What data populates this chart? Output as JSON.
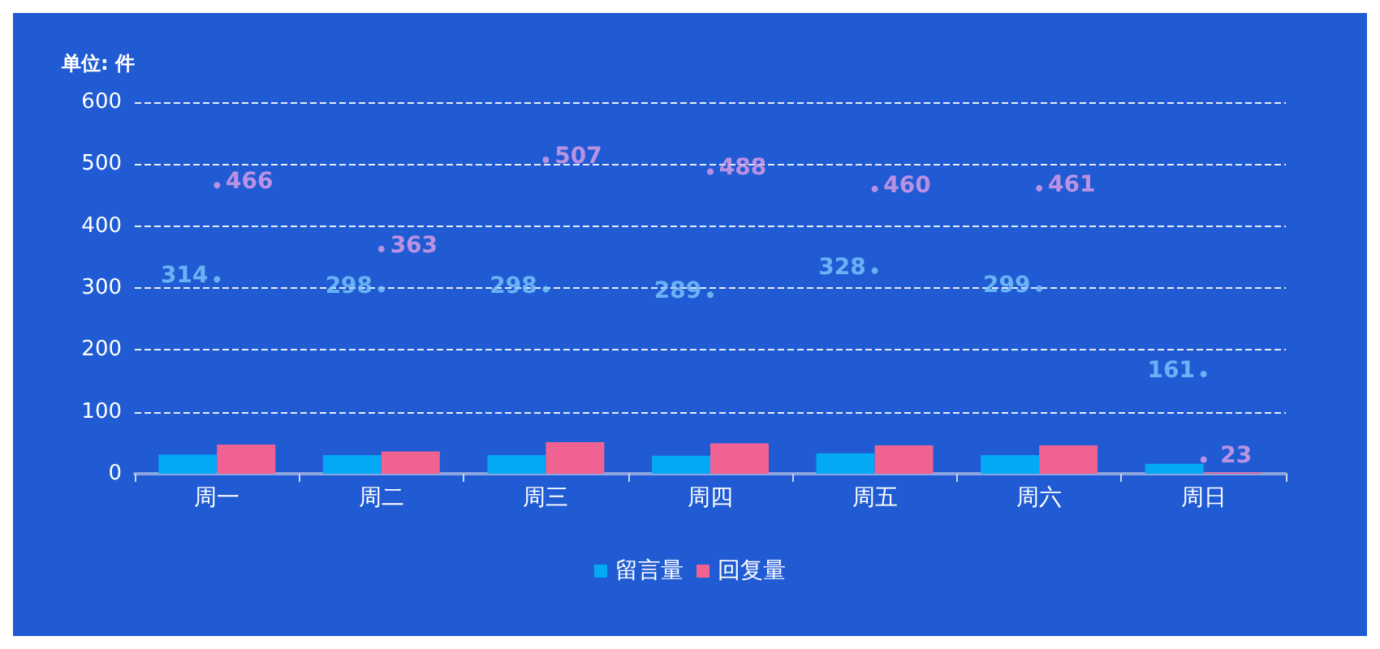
{
  "chart_data": {
    "type": "bar",
    "ylabel": "单位: 件",
    "categories": [
      "周一",
      "周二",
      "周三",
      "周四",
      "周五",
      "周六",
      "周日"
    ],
    "series": [
      {
        "name": "留言量",
        "color": "#03a9f4",
        "values": [
          31,
          30,
          30,
          29,
          33,
          30,
          16
        ]
      },
      {
        "name": "回复量",
        "color": "#f06292",
        "values": [
          47,
          36,
          51,
          49,
          46,
          46,
          2
        ]
      },
      {
        "type": "scatter",
        "color": "#7cc8ff",
        "values": [
          314,
          298,
          298,
          289,
          328,
          299,
          161
        ],
        "value_labels": [
          "314",
          "298",
          "298",
          "289",
          "328",
          "299",
          "161"
        ]
      },
      {
        "type": "scatter",
        "color": "#e0a0e8",
        "values": [
          466,
          363,
          507,
          488,
          460,
          461,
          23
        ],
        "value_labels": [
          "466",
          "363",
          "507",
          "488",
          "460",
          "461",
          "23"
        ]
      }
    ],
    "ylim": [
      0,
      600
    ],
    "yticks": [
      0,
      100,
      200,
      300,
      400,
      500,
      600
    ],
    "grid": "y",
    "legend": "bottom",
    "marker": "circle"
  }
}
